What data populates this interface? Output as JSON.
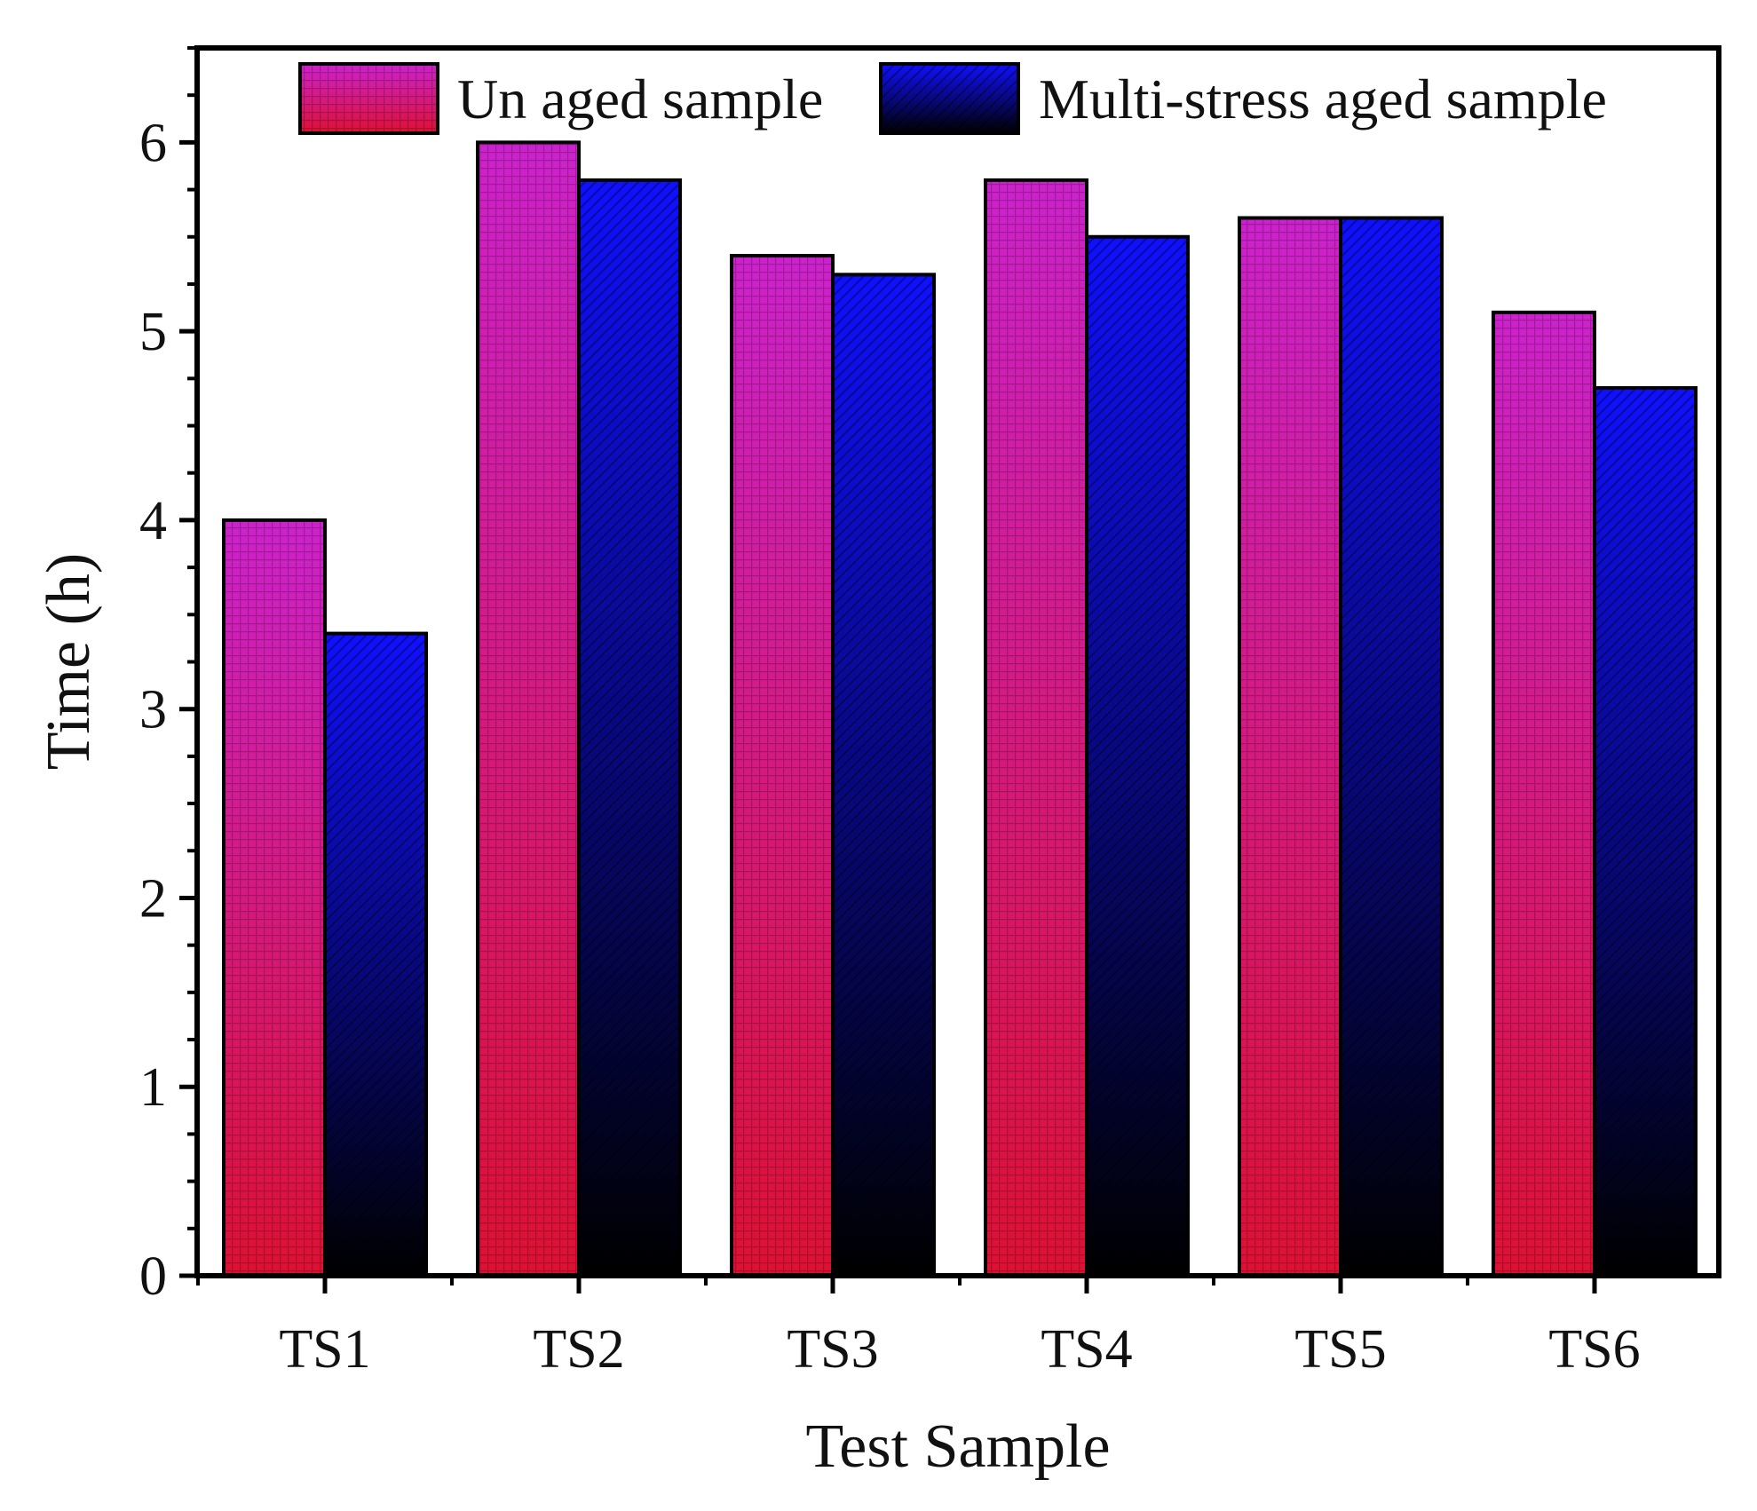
{
  "chart_data": {
    "type": "bar",
    "title": "",
    "xlabel": "Test Sample",
    "ylabel": "Time (h)",
    "categories": [
      "TS1",
      "TS2",
      "TS3",
      "TS4",
      "TS5",
      "TS6"
    ],
    "series": [
      {
        "name": "Un aged sample",
        "values": [
          4.0,
          6.0,
          5.4,
          5.8,
          5.6,
          5.1
        ],
        "color_top": "#cc22cc",
        "color_bottom": "#dd1133"
      },
      {
        "name": "Multi-stress aged sample",
        "values": [
          3.4,
          5.8,
          5.3,
          5.5,
          5.6,
          4.7
        ],
        "color_top": "#1010ff",
        "color_bottom": "#000000"
      }
    ],
    "ylim": [
      0,
      6.5
    ],
    "yticks": [
      "0",
      "1",
      "2",
      "3",
      "4",
      "5",
      "6"
    ],
    "ytick_values": [
      0,
      1,
      2,
      3,
      4,
      5,
      6
    ],
    "grid": false,
    "legend_position": "top"
  }
}
